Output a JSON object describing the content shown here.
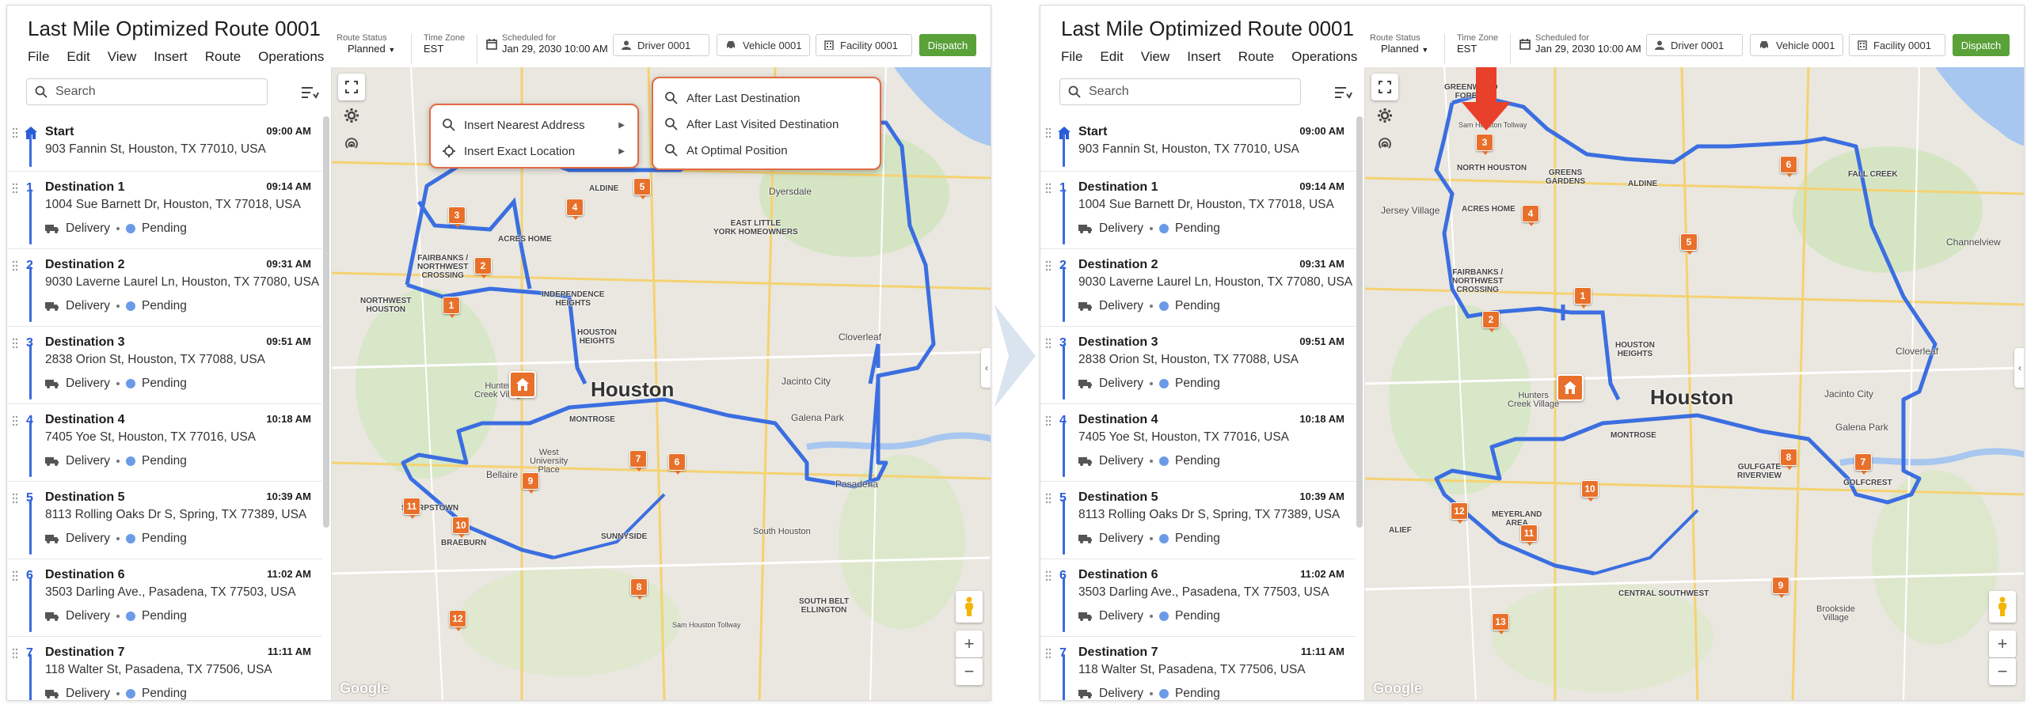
{
  "route": {
    "title": "Last Mile Optimized Route 0001",
    "menu": [
      "File",
      "Edit",
      "View",
      "Insert",
      "Route",
      "Operations"
    ],
    "route_status_label": "Route Status",
    "route_status_value": "Planned",
    "timezone_label": "Time Zone",
    "timezone_value": "EST",
    "scheduled_label": "Scheduled for",
    "scheduled_value": "Jan 29, 2030 10:00 AM",
    "driver": "Driver 0001",
    "vehicle": "Vehicle 0001",
    "facility": "Facility 0001",
    "dispatch": "Dispatch"
  },
  "search": {
    "placeholder": "Search"
  },
  "stops": [
    {
      "num": "",
      "name": "Start",
      "time": "09:00 AM",
      "address": "903 Fannin St, Houston, TX 77010, USA",
      "type": "",
      "status": ""
    },
    {
      "num": "1",
      "name": "Destination 1",
      "time": "09:14 AM",
      "address": "1004 Sue Barnett Dr, Houston, TX 77018, USA",
      "type": "Delivery",
      "status": "Pending"
    },
    {
      "num": "2",
      "name": "Destination 2",
      "time": "09:31 AM",
      "address": "9030 Laverne Laurel Ln, Houston, TX 77080, USA",
      "type": "Delivery",
      "status": "Pending"
    },
    {
      "num": "3",
      "name": "Destination 3",
      "time": "09:51 AM",
      "address": "2838 Orion St, Houston, TX 77088, USA",
      "type": "Delivery",
      "status": "Pending"
    },
    {
      "num": "4",
      "name": "Destination 4",
      "time": "10:18 AM",
      "address": "7405 Yoe St, Houston, TX 77016, USA",
      "type": "Delivery",
      "status": "Pending"
    },
    {
      "num": "5",
      "name": "Destination 5",
      "time": "10:39 AM",
      "address": "8113 Rolling Oaks Dr S, Spring, TX 77389, USA",
      "type": "Delivery",
      "status": "Pending"
    },
    {
      "num": "6",
      "name": "Destination 6",
      "time": "11:02 AM",
      "address": "3503 Darling Ave., Pasadena, TX 77503, USA",
      "type": "Delivery",
      "status": "Pending"
    },
    {
      "num": "7",
      "name": "Destination 7",
      "time": "11:11 AM",
      "address": "118 Walter St, Pasadena, TX 77506, USA",
      "type": "Delivery",
      "status": "Pending"
    }
  ],
  "context_menu": {
    "main": [
      "Insert Nearest Address",
      "Insert Exact Location"
    ],
    "sub": [
      "After Last Destination",
      "After Last Visited Destination",
      "At Optimal Position"
    ]
  },
  "map": {
    "city": "Houston",
    "google": "Google",
    "labels": {
      "aldine": "ALDINE",
      "greenwood": "GREENWOOD\nFOREST",
      "north_houston": "NORTH HOUSTON",
      "greens": "GREENS\nGARDENS",
      "jersey": "Jersey Village",
      "acres": "ACRES HOME",
      "little_york": "EAST LITTLE\nYORK HOMEOWNERS",
      "dyersdale": "Dyersdale",
      "fall_creek": "FALL CREEK",
      "fairbanks": "FAIRBANKS /\nNORTHWEST\nCROSSING",
      "northwest_houston": "NORTHWEST\nHOUSTON",
      "independence": "INDEPENDENCE\nHEIGHTS",
      "houston_heights": "HOUSTON\nHEIGHTS",
      "cloverleaf": "Cloverleaf",
      "channelview": "Channelview",
      "hunters": "Hunters\nCreek Village",
      "jacinto": "Jacinto City",
      "montrose": "MONTROSE",
      "galena": "Galena Park",
      "south_houston": "South Houston",
      "bellaire": "Bellaire",
      "west_u": "West\nUniversity\nPlace",
      "pasadena": "Pasadena",
      "gulfgate": "GULFGATE\nRIVERVIEW",
      "golfcrest": "GOLFCREST",
      "meyerland": "MEYERLAND\nAREA",
      "sharpstown": "SHARPSTOWN",
      "braeburn": "BRAEBURN",
      "alief": "ALIEF",
      "sunnyside": "SUNNYSIDE",
      "south_belt": "SOUTH BELT\nELLINGTON",
      "central_sw": "CENTRAL SOUTHWEST",
      "brookside": "Brookside\nVillage",
      "sam_houston": "Sam Houston Tollway"
    },
    "left_markers": [
      "1",
      "2",
      "3",
      "4",
      "5",
      "6",
      "7",
      "8",
      "9",
      "10",
      "11",
      "12"
    ],
    "right_markers": [
      "1",
      "2",
      "3",
      "4",
      "5",
      "6",
      "7",
      "8",
      "9",
      "10",
      "11",
      "12",
      "13"
    ]
  }
}
